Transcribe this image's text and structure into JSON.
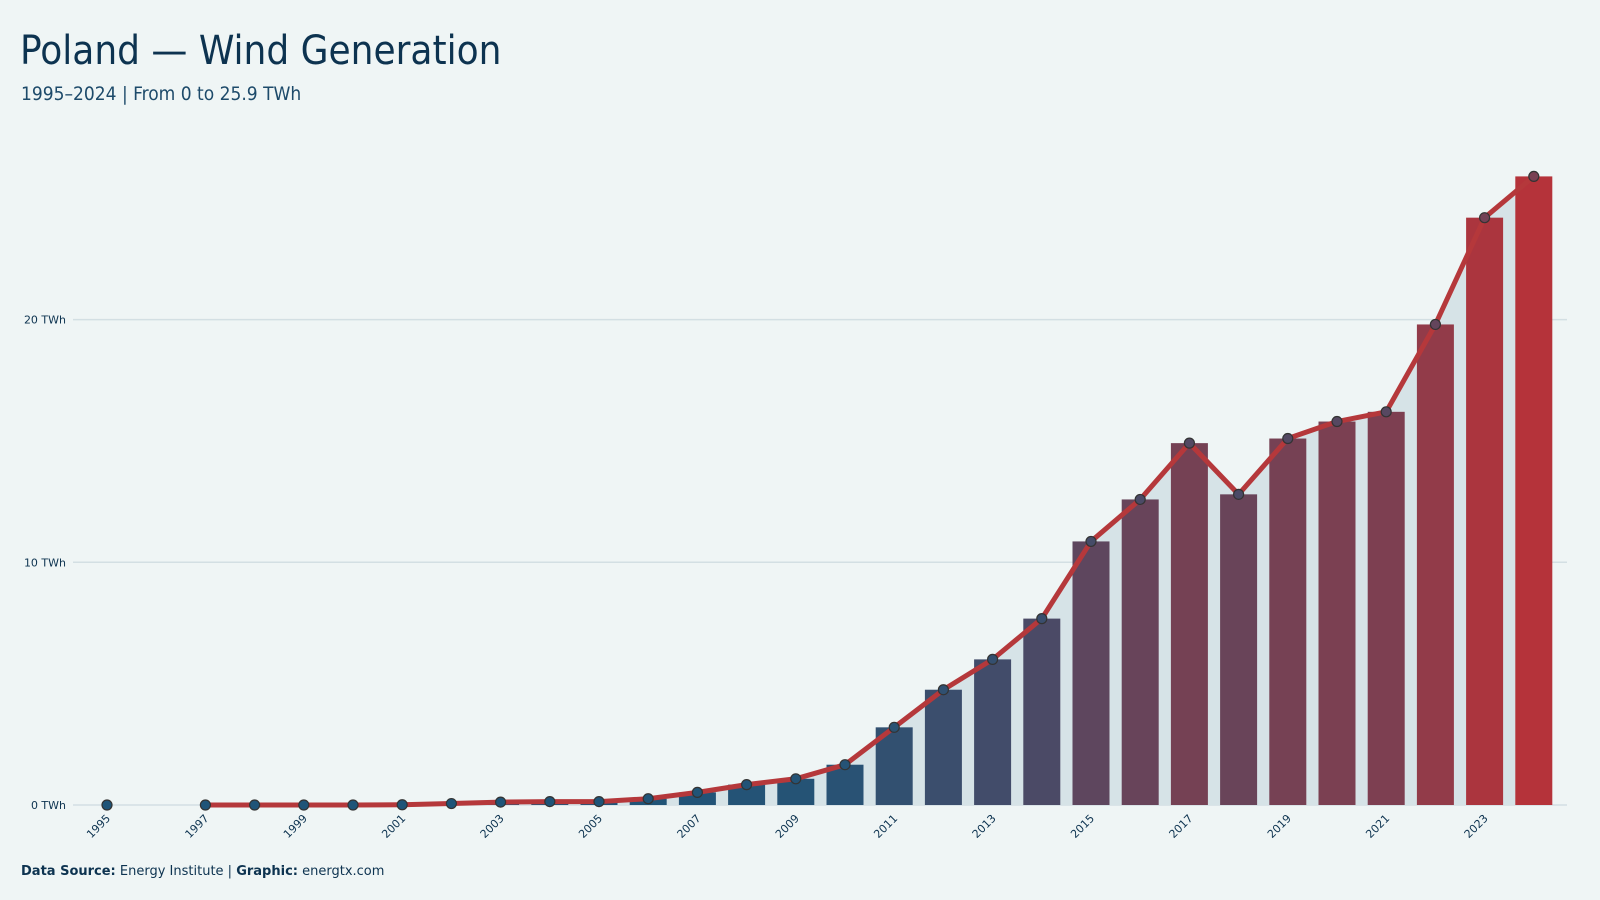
{
  "chart_data": {
    "type": "bar-line",
    "title": "Poland — Wind Generation",
    "subtitle": "1995–2024 | From 0 to 25.9 TWh",
    "footer": {
      "source_label": "Data Source:",
      "source": "Energy Institute |",
      "graphic_label": "Graphic:",
      "graphic": "energtx.com"
    },
    "categories": [
      "1995",
      null,
      "1997",
      null,
      "1999",
      null,
      "2001",
      null,
      "2003",
      null,
      "2005",
      null,
      "2007",
      null,
      "2009",
      null,
      "2011",
      null,
      "2013",
      null,
      "2015",
      null,
      "2017",
      null,
      "2019",
      null,
      "2021",
      null,
      "2023",
      null
    ],
    "values": [
      0,
      null,
      0,
      0,
      0,
      0,
      0.01,
      0.06,
      0.12,
      0.14,
      0.14,
      0.26,
      0.52,
      0.84,
      1.08,
      1.66,
      3.2,
      4.75,
      6.0,
      7.68,
      10.86,
      12.59,
      14.91,
      12.8,
      15.1,
      15.8,
      16.2,
      19.8,
      24.2,
      25.9
    ],
    "color_low": "#1f5478",
    "color_high": "#b5333a",
    "line_color": "#b5383b",
    "area_color": "#d6e3e7",
    "ylim": [
      0,
      27
    ],
    "yticks": [
      {
        "value": 0,
        "label": "0 TWh"
      },
      {
        "value": 10,
        "label": "10 TWh"
      },
      {
        "value": 20,
        "label": "20 TWh"
      }
    ],
    "grid": true
  }
}
